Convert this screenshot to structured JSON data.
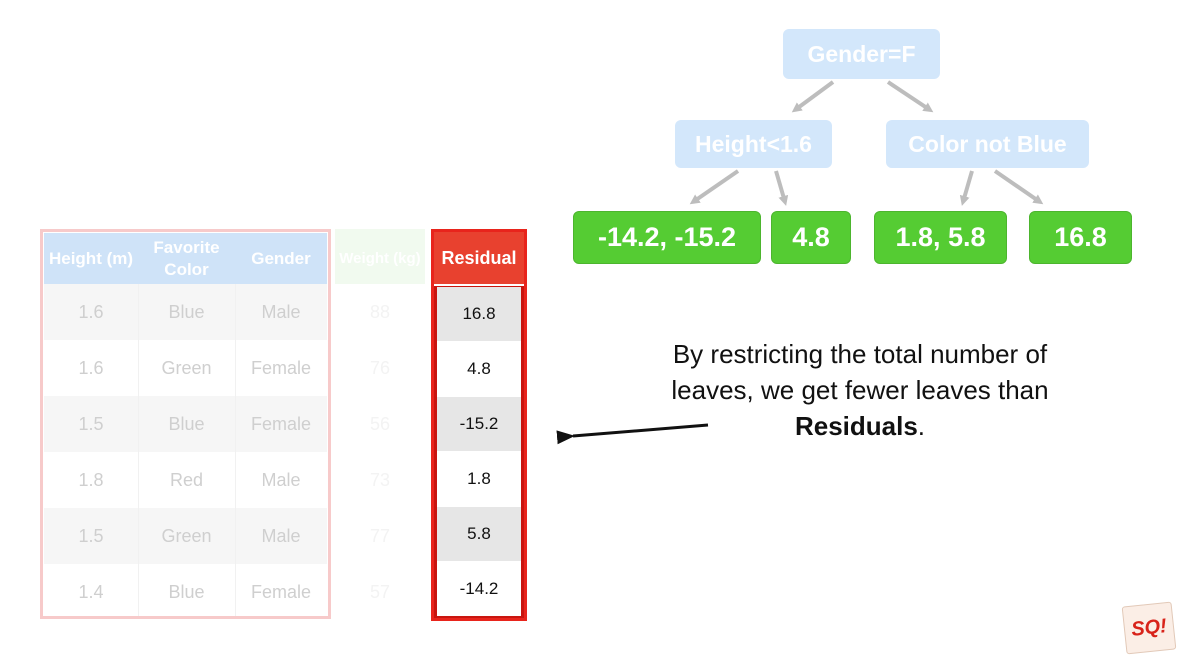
{
  "tree": {
    "root": "Gender=F",
    "left_split": "Height<1.6",
    "right_split": "Color not Blue",
    "leaves": [
      "-14.2, -15.2",
      "4.8",
      "1.8, 5.8",
      "16.8"
    ]
  },
  "table": {
    "headers": {
      "height": "Height (m)",
      "color": "Favorite Color",
      "gender": "Gender",
      "weight": "Weight (kg)",
      "residual": "Residual"
    },
    "rows": [
      {
        "height": "1.6",
        "color": "Blue",
        "gender": "Male",
        "weight": "88",
        "residual": "16.8"
      },
      {
        "height": "1.6",
        "color": "Green",
        "gender": "Female",
        "weight": "76",
        "residual": "4.8"
      },
      {
        "height": "1.5",
        "color": "Blue",
        "gender": "Female",
        "weight": "56",
        "residual": "-15.2"
      },
      {
        "height": "1.8",
        "color": "Red",
        "gender": "Male",
        "weight": "73",
        "residual": "1.8"
      },
      {
        "height": "1.5",
        "color": "Green",
        "gender": "Male",
        "weight": "77",
        "residual": "5.8"
      },
      {
        "height": "1.4",
        "color": "Blue",
        "gender": "Female",
        "weight": "57",
        "residual": "-14.2"
      }
    ]
  },
  "caption": {
    "text": "By restricting the total number of leaves, we get fewer leaves than",
    "bold": "Residuals",
    "end": "."
  },
  "logo": {
    "text": "SQ!"
  },
  "colors": {
    "split_node": "#d3e7fb",
    "leaf_node": "#55cc33",
    "residual_red": "#e8241c",
    "table_header_blue": "#cfe3f8",
    "table_frame_pink": "#f7caca"
  }
}
